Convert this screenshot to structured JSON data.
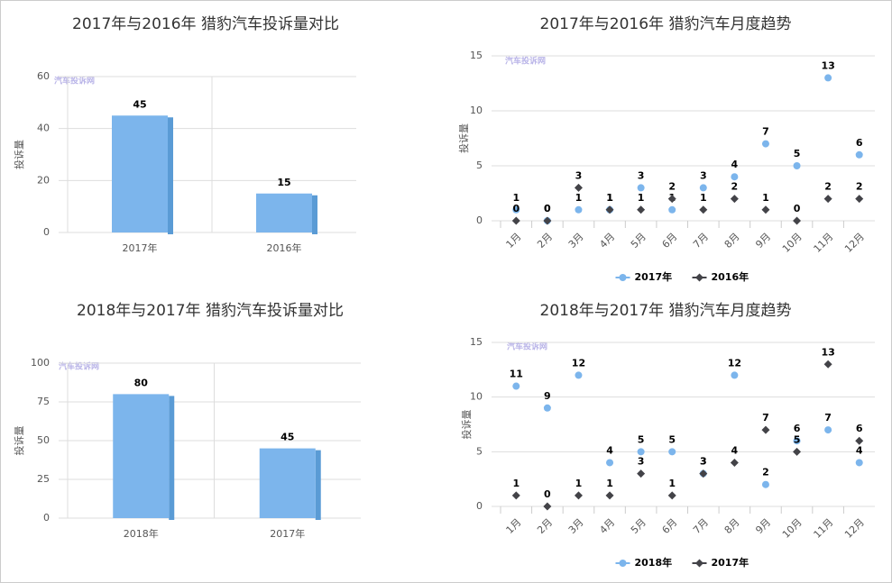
{
  "chart_data": [
    {
      "type": "bar",
      "title": "2017年与2016年 猎豹汽车投诉量对比",
      "ylabel": "投诉量",
      "watermark": "汽车投诉网",
      "categories": [
        "2017年",
        "2016年"
      ],
      "values": [
        45,
        15
      ],
      "color": "#7cb5ec",
      "ylim": [
        0,
        60
      ],
      "yticks": [
        0,
        20,
        40,
        60
      ],
      "grid": true
    },
    {
      "type": "line",
      "title": "2017年与2016年 猎豹汽车月度趋势",
      "ylabel": "投诉量",
      "watermark": "汽车投诉网",
      "categories": [
        "1月",
        "2月",
        "3月",
        "4月",
        "5月",
        "6月",
        "7月",
        "8月",
        "9月",
        "10月",
        "11月",
        "12月"
      ],
      "series": [
        {
          "name": "2017年",
          "color": "#7cb5ec",
          "marker": "circle",
          "values": [
            1,
            0,
            1,
            1,
            3,
            1,
            3,
            4,
            7,
            5,
            13,
            6
          ]
        },
        {
          "name": "2016年",
          "color": "#434348",
          "marker": "diamond",
          "values": [
            0,
            0,
            3,
            1,
            1,
            2,
            1,
            2,
            1,
            0,
            2,
            2
          ]
        }
      ],
      "ylim": [
        0,
        15
      ],
      "yticks": [
        0,
        5,
        10,
        15
      ],
      "grid": true
    },
    {
      "type": "bar",
      "title": "2018年与2017年 猎豹汽车投诉量对比",
      "ylabel": "投诉量",
      "watermark": "汽车投诉网",
      "categories": [
        "2018年",
        "2017年"
      ],
      "values": [
        80,
        45
      ],
      "color": "#7cb5ec",
      "ylim": [
        0,
        100
      ],
      "yticks": [
        0,
        25,
        50,
        75,
        100
      ],
      "grid": true
    },
    {
      "type": "line",
      "title": "2018年与2017年 猎豹汽车月度趋势",
      "ylabel": "投诉量",
      "watermark": "汽车投诉网",
      "categories": [
        "1月",
        "2月",
        "3月",
        "4月",
        "5月",
        "6月",
        "7月",
        "8月",
        "9月",
        "10月",
        "11月",
        "12月"
      ],
      "series": [
        {
          "name": "2018年",
          "color": "#7cb5ec",
          "marker": "circle",
          "values": [
            11,
            9,
            12,
            4,
            5,
            5,
            3,
            12,
            2,
            6,
            7,
            4
          ]
        },
        {
          "name": "2017年",
          "color": "#434348",
          "marker": "diamond",
          "values": [
            1,
            0,
            1,
            1,
            3,
            1,
            3,
            4,
            7,
            5,
            13,
            6
          ]
        }
      ],
      "ylim": [
        0,
        15
      ],
      "yticks": [
        0,
        5,
        10,
        15
      ],
      "grid": true
    }
  ]
}
